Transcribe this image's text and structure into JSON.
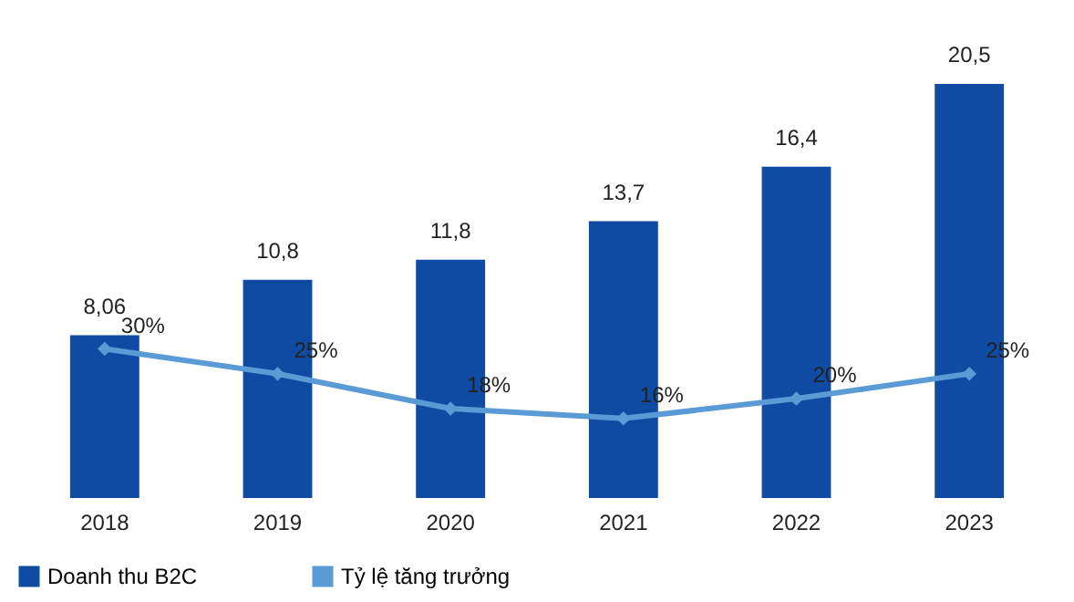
{
  "chart_data": {
    "type": "bar",
    "categories": [
      "2018",
      "2019",
      "2020",
      "2021",
      "2022",
      "2023"
    ],
    "series": [
      {
        "name": "Doanh thu B2C",
        "color": "#0f4aa3",
        "values": [
          8.06,
          10.8,
          11.8,
          13.7,
          16.4,
          20.5
        ],
        "value_labels": [
          "8,06",
          "10,8",
          "11,8",
          "13,7",
          "16,4",
          "20,5"
        ]
      },
      {
        "name": "Tỷ lệ tăng trưởng",
        "type": "line",
        "axis": "y2",
        "color": "#5b9bd5",
        "values": [
          30,
          25,
          18,
          16,
          20,
          25
        ],
        "value_labels": [
          "30%",
          "25%",
          "18%",
          "16%",
          "20%",
          "25%"
        ]
      }
    ],
    "legend": "bottom",
    "marker": "diamond",
    "line_style": "solid"
  }
}
